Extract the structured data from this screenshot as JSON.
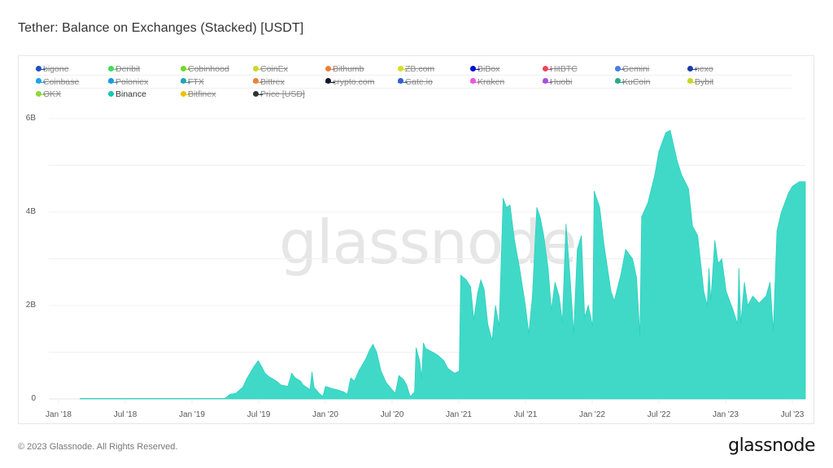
{
  "header": {
    "title": "Tether: Balance on Exchanges (Stacked) [USDT]"
  },
  "legend": {
    "items": [
      {
        "label": "bigone",
        "color": "#1f4fbf",
        "enabled": false
      },
      {
        "label": "Deribit",
        "color": "#3fdc5a",
        "enabled": false
      },
      {
        "label": "Cobinhood",
        "color": "#74d62a",
        "enabled": false
      },
      {
        "label": "CoinEx",
        "color": "#c7d92e",
        "enabled": false
      },
      {
        "label": "Bithumb",
        "color": "#e8823a",
        "enabled": false
      },
      {
        "label": "ZB.com",
        "color": "#d4e02a",
        "enabled": false
      },
      {
        "label": "BiBox",
        "color": "#0a0ad6",
        "enabled": false
      },
      {
        "label": "HitBTC",
        "color": "#ee4560",
        "enabled": false
      },
      {
        "label": "Gemini",
        "color": "#4a7de0",
        "enabled": false
      },
      {
        "label": "nexo",
        "color": "#1a3aa8",
        "enabled": false
      },
      {
        "label": "Coinbase",
        "color": "#1ea4e6",
        "enabled": false
      },
      {
        "label": "Poloniex",
        "color": "#1b9be0",
        "enabled": false
      },
      {
        "label": "FTX",
        "color": "#1fa5b8",
        "enabled": false
      },
      {
        "label": "Bittrex",
        "color": "#e8823a",
        "enabled": false
      },
      {
        "label": "crypto.com",
        "color": "#111827",
        "enabled": false
      },
      {
        "label": "Gate.io",
        "color": "#2f5fd0",
        "enabled": false
      },
      {
        "label": "Kraken",
        "color": "#ee55e0",
        "enabled": false
      },
      {
        "label": "Huobi",
        "color": "#a64fe0",
        "enabled": false
      },
      {
        "label": "KuCoin",
        "color": "#2aaa8a",
        "enabled": false
      },
      {
        "label": "Bybit",
        "color": "#c9d62a",
        "enabled": false
      },
      {
        "label": "OKX",
        "color": "#8ed83a",
        "enabled": false
      },
      {
        "label": "Binance",
        "color": "#1ac8b4",
        "enabled": true
      },
      {
        "label": "Bitfinex",
        "color": "#f0c000",
        "enabled": false
      },
      {
        "label": "Price [USD]",
        "color": "#333333",
        "enabled": false
      }
    ]
  },
  "watermark": "glassnode",
  "footer": {
    "copyright": "© 2023 Glassnode. All Rights Reserved.",
    "logo": "glassnode"
  },
  "chart_data": {
    "type": "area",
    "title": "Tether: Balance on Exchanges (Stacked) [USDT]",
    "xlabel": "",
    "ylabel": "",
    "ylim": [
      0,
      6000000000
    ],
    "y_ticks": [
      "0",
      "2B",
      "4B",
      "6B"
    ],
    "y_tick_values": [
      0,
      2000000000,
      4000000000,
      6000000000
    ],
    "x_ticks": [
      "Jan '18",
      "Jul '18",
      "Jan '19",
      "Jul '19",
      "Jan '20",
      "Jul '20",
      "Jan '21",
      "Jul '21",
      "Jan '22",
      "Jul '22",
      "Jan '23",
      "Jul '23"
    ],
    "grid": true,
    "legend_position": "top",
    "series": [
      {
        "name": "Binance",
        "color": "#40d9c8",
        "unit": "B USDT",
        "points": [
          [
            "2018-03",
            0.01
          ],
          [
            "2018-06",
            0.01
          ],
          [
            "2018-12",
            0.01
          ],
          [
            "2019-04",
            0.01
          ],
          [
            "2019-04-15",
            0.1
          ],
          [
            "2019-05",
            0.12
          ],
          [
            "2019-05-20",
            0.25
          ],
          [
            "2019-06",
            0.45
          ],
          [
            "2019-06-20",
            0.7
          ],
          [
            "2019-07",
            0.82
          ],
          [
            "2019-07-10",
            0.7
          ],
          [
            "2019-07-20",
            0.55
          ],
          [
            "2019-08",
            0.47
          ],
          [
            "2019-08-20",
            0.38
          ],
          [
            "2019-09",
            0.3
          ],
          [
            "2019-09-20",
            0.27
          ],
          [
            "2019-10",
            0.55
          ],
          [
            "2019-10-10",
            0.45
          ],
          [
            "2019-10-25",
            0.38
          ],
          [
            "2019-11",
            0.3
          ],
          [
            "2019-11-20",
            0.2
          ],
          [
            "2019-11-25",
            0.58
          ],
          [
            "2019-12",
            0.25
          ],
          [
            "2019-12-15",
            0.12
          ],
          [
            "2019-12-25",
            0.05
          ],
          [
            "2020-01",
            0.27
          ],
          [
            "2020-01-20",
            0.22
          ],
          [
            "2020-02",
            0.2
          ],
          [
            "2020-02-20",
            0.15
          ],
          [
            "2020-03",
            0.1
          ],
          [
            "2020-03-10",
            0.45
          ],
          [
            "2020-03-20",
            0.38
          ],
          [
            "2020-04",
            0.6
          ],
          [
            "2020-04-20",
            0.85
          ],
          [
            "2020-05",
            1.05
          ],
          [
            "2020-05-10",
            1.17
          ],
          [
            "2020-05-20",
            1.0
          ],
          [
            "2020-06",
            0.6
          ],
          [
            "2020-06-15",
            0.35
          ],
          [
            "2020-07",
            0.2
          ],
          [
            "2020-07-10",
            0.12
          ],
          [
            "2020-07-20",
            0.5
          ],
          [
            "2020-08",
            0.42
          ],
          [
            "2020-08-10",
            0.3
          ],
          [
            "2020-08-20",
            0.05
          ],
          [
            "2020-09",
            0.15
          ],
          [
            "2020-09-05",
            1.1
          ],
          [
            "2020-09-15",
            0.8
          ],
          [
            "2020-09-20",
            0.45
          ],
          [
            "2020-09-25",
            1.2
          ],
          [
            "2020-10",
            1.08
          ],
          [
            "2020-10-20",
            1.0
          ],
          [
            "2020-11",
            0.95
          ],
          [
            "2020-11-20",
            0.82
          ],
          [
            "2020-12",
            0.65
          ],
          [
            "2020-12-20",
            0.55
          ],
          [
            "2021-01",
            0.6
          ],
          [
            "2021-01-05",
            2.65
          ],
          [
            "2021-01-20",
            2.55
          ],
          [
            "2021-02",
            2.4
          ],
          [
            "2021-02-10",
            1.7
          ],
          [
            "2021-02-20",
            2.25
          ],
          [
            "2021-03",
            2.55
          ],
          [
            "2021-03-10",
            2.35
          ],
          [
            "2021-03-20",
            1.6
          ],
          [
            "2021-04",
            1.25
          ],
          [
            "2021-04-10",
            2.0
          ],
          [
            "2021-04-20",
            1.55
          ],
          [
            "2021-05",
            4.3
          ],
          [
            "2021-05-10",
            4.1
          ],
          [
            "2021-05-20",
            4.15
          ],
          [
            "2021-06",
            3.4
          ],
          [
            "2021-06-15",
            2.8
          ],
          [
            "2021-07",
            2.0
          ],
          [
            "2021-07-10",
            1.4
          ],
          [
            "2021-07-20",
            2.2
          ],
          [
            "2021-08",
            4.1
          ],
          [
            "2021-08-10",
            3.9
          ],
          [
            "2021-08-20",
            3.5
          ],
          [
            "2021-09",
            2.8
          ],
          [
            "2021-09-10",
            1.9
          ],
          [
            "2021-09-20",
            2.5
          ],
          [
            "2021-10",
            2.2
          ],
          [
            "2021-10-10",
            1.65
          ],
          [
            "2021-10-20",
            3.75
          ],
          [
            "2021-11",
            2.5
          ],
          [
            "2021-11-10",
            1.4
          ],
          [
            "2021-11-20",
            3.2
          ],
          [
            "2021-12",
            3.5
          ],
          [
            "2021-12-10",
            1.75
          ],
          [
            "2021-12-20",
            2.0
          ],
          [
            "2022-01",
            1.55
          ],
          [
            "2022-01-05",
            4.45
          ],
          [
            "2022-01-20",
            4.1
          ],
          [
            "2022-02",
            3.3
          ],
          [
            "2022-02-20",
            2.3
          ],
          [
            "2022-03",
            2.1
          ],
          [
            "2022-03-20",
            2.7
          ],
          [
            "2022-04",
            3.2
          ],
          [
            "2022-04-20",
            3.0
          ],
          [
            "2022-05",
            2.6
          ],
          [
            "2022-05-10",
            1.35
          ],
          [
            "2022-05-15",
            3.9
          ],
          [
            "2022-06",
            4.2
          ],
          [
            "2022-06-20",
            4.8
          ],
          [
            "2022-07",
            5.3
          ],
          [
            "2022-07-20",
            5.7
          ],
          [
            "2022-08",
            5.75
          ],
          [
            "2022-08-20",
            5.1
          ],
          [
            "2022-09",
            4.8
          ],
          [
            "2022-09-20",
            4.5
          ],
          [
            "2022-10",
            3.7
          ],
          [
            "2022-10-15",
            3.5
          ],
          [
            "2022-11",
            2.3
          ],
          [
            "2022-11-10",
            2.0
          ],
          [
            "2022-11-15",
            2.8
          ],
          [
            "2022-11-20",
            2.1
          ],
          [
            "2022-12",
            3.4
          ],
          [
            "2022-12-10",
            2.9
          ],
          [
            "2022-12-20",
            3.0
          ],
          [
            "2023-01",
            2.3
          ],
          [
            "2023-01-20",
            1.9
          ],
          [
            "2023-02",
            1.6
          ],
          [
            "2023-02-05",
            2.8
          ],
          [
            "2023-02-10",
            1.6
          ],
          [
            "2023-02-20",
            2.5
          ],
          [
            "2023-03",
            2.0
          ],
          [
            "2023-03-15",
            2.2
          ],
          [
            "2023-04",
            2.05
          ],
          [
            "2023-04-20",
            2.2
          ],
          [
            "2023-05",
            2.5
          ],
          [
            "2023-05-10",
            1.45
          ],
          [
            "2023-05-20",
            3.6
          ],
          [
            "2023-06",
            4.0
          ],
          [
            "2023-06-20",
            4.4
          ],
          [
            "2023-07",
            4.55
          ],
          [
            "2023-07-20",
            4.65
          ]
        ]
      }
    ]
  }
}
